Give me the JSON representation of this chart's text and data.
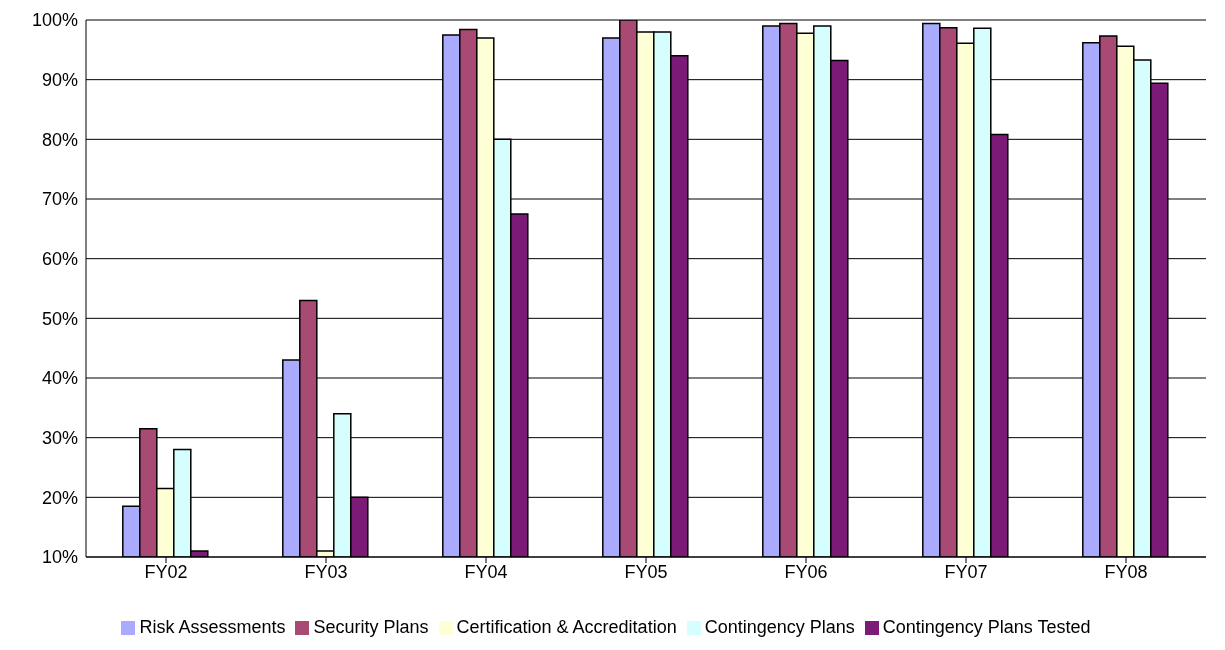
{
  "chart_data": {
    "type": "bar",
    "categories": [
      "FY02",
      "FY03",
      "FY04",
      "FY05",
      "FY06",
      "FY07",
      "FY08"
    ],
    "series": [
      {
        "name": "Risk Assessments",
        "color": "#aaaaff",
        "values": [
          18.5,
          43,
          97.5,
          97,
          99,
          99.4,
          96.2
        ]
      },
      {
        "name": "Security Plans",
        "color": "#a94a75",
        "values": [
          31.5,
          53,
          98.4,
          100,
          99.4,
          98.7,
          97.3
        ]
      },
      {
        "name": "Certification & Accreditation",
        "color": "#ffffd5",
        "values": [
          21.5,
          11,
          97,
          98,
          97.8,
          96.1,
          95.6
        ]
      },
      {
        "name": "Contingency Plans",
        "color": "#d5ffff",
        "values": [
          28,
          34,
          80,
          98,
          99,
          98.6,
          93.3
        ]
      },
      {
        "name": "Contingency Plans Tested",
        "color": "#7b1a77",
        "values": [
          11,
          20,
          67.5,
          94,
          93.2,
          80.8,
          89.4
        ]
      }
    ],
    "ylim": [
      10,
      100
    ],
    "yticks": [
      {
        "value": 10,
        "label": "10%"
      },
      {
        "value": 20,
        "label": "20%"
      },
      {
        "value": 30,
        "label": "30%"
      },
      {
        "value": 40,
        "label": "40%"
      },
      {
        "value": 50,
        "label": "50%"
      },
      {
        "value": 60,
        "label": "60%"
      },
      {
        "value": 70,
        "label": "70%"
      },
      {
        "value": 80,
        "label": "80%"
      },
      {
        "value": 90,
        "label": "90%"
      },
      {
        "value": 100,
        "label": "100%"
      }
    ],
    "grid": "y",
    "legend": "bottom"
  }
}
